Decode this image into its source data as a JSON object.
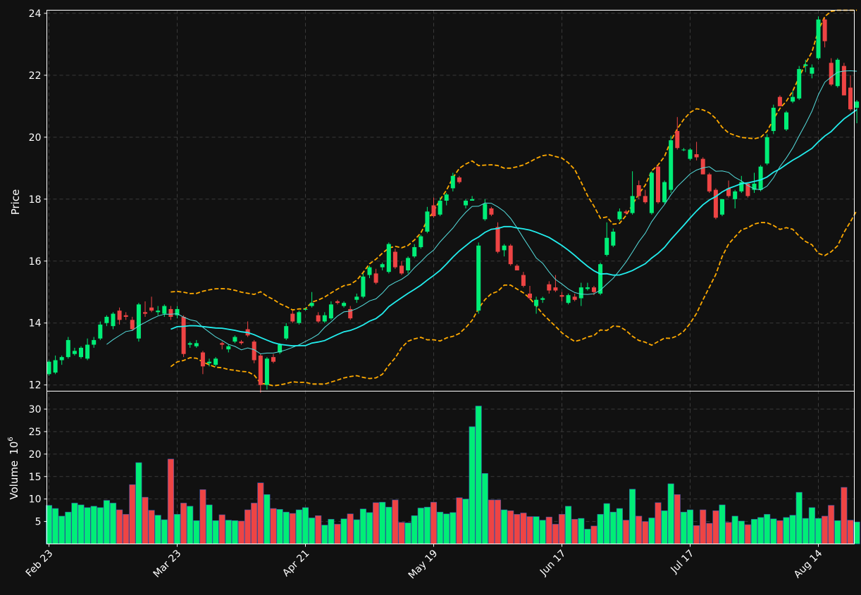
{
  "colors": {
    "background": "#111111",
    "up": "#00ee77",
    "down": "#ee4444",
    "sma_fast": "#55dddd",
    "sma_slow": "#22eeee",
    "bollinger": "#ffaa00",
    "grid": "#3a3a3a",
    "text": "#ffffff"
  },
  "chart_data": {
    "type": "candlestick",
    "ylabel": "Price",
    "volume_label": "Volume",
    "volume_exponent_label": "10",
    "volume_exponent": "6",
    "price_ylim": [
      11.8,
      24.1
    ],
    "price_ticks": [
      "12",
      "14",
      "16",
      "18",
      "20",
      "22",
      "24"
    ],
    "volume_ylim": [
      0,
      34
    ],
    "volume_ticks": [
      "5",
      "10",
      "15",
      "20",
      "25",
      "30"
    ],
    "x_tick_labels": [
      "Feb 23",
      "Mar 23",
      "Apr 21",
      "May 19",
      "Jun 17",
      "Jul 17",
      "Aug 14"
    ],
    "x_tick_index": [
      0,
      20,
      40,
      60,
      80,
      100,
      120
    ],
    "grid": true,
    "ohlcv": [
      [
        12.35,
        12.8,
        12.3,
        12.75,
        8.6
      ],
      [
        12.4,
        12.95,
        12.35,
        12.8,
        7.9
      ],
      [
        12.8,
        12.95,
        12.65,
        12.9,
        6.2
      ],
      [
        12.9,
        13.55,
        12.85,
        13.45,
        7.1
      ],
      [
        13.0,
        13.2,
        12.95,
        13.1,
        9.1
      ],
      [
        12.9,
        13.25,
        12.85,
        13.2,
        8.7
      ],
      [
        12.85,
        13.5,
        12.8,
        13.3,
        8.1
      ],
      [
        13.3,
        13.55,
        13.2,
        13.45,
        8.4
      ],
      [
        13.5,
        14.05,
        13.45,
        13.95,
        8.1
      ],
      [
        14.0,
        14.25,
        13.9,
        14.2,
        9.7
      ],
      [
        13.9,
        14.35,
        13.8,
        14.3,
        9.1
      ],
      [
        14.4,
        14.5,
        13.95,
        14.1,
        7.6
      ],
      [
        14.25,
        14.35,
        14.1,
        14.2,
        6.6
      ],
      [
        14.1,
        14.2,
        13.75,
        13.8,
        13.2
      ],
      [
        13.5,
        14.65,
        13.4,
        14.6,
        18.1
      ],
      [
        14.35,
        14.7,
        14.2,
        14.3,
        10.4
      ],
      [
        14.5,
        14.85,
        14.35,
        14.4,
        7.5
      ],
      [
        14.35,
        14.55,
        14.25,
        14.4,
        6.4
      ],
      [
        14.3,
        14.6,
        14.2,
        14.55,
        5.4
      ],
      [
        14.45,
        14.55,
        14.1,
        14.2,
        18.9
      ],
      [
        14.25,
        14.55,
        14.15,
        14.45,
        6.6
      ],
      [
        14.2,
        14.25,
        12.9,
        13.0,
        9.1
      ],
      [
        13.3,
        13.4,
        13.2,
        13.35,
        8.4
      ],
      [
        13.25,
        13.45,
        13.2,
        13.35,
        5.2
      ],
      [
        13.05,
        13.1,
        12.35,
        12.6,
        12.1
      ],
      [
        12.7,
        12.85,
        12.6,
        12.75,
        8.7
      ],
      [
        12.65,
        12.9,
        12.6,
        12.85,
        5.2
      ],
      [
        13.35,
        13.4,
        13.15,
        13.3,
        6.5
      ],
      [
        13.15,
        13.3,
        13.05,
        13.25,
        5.3
      ],
      [
        13.4,
        13.6,
        13.35,
        13.55,
        5.2
      ],
      [
        13.4,
        13.45,
        13.3,
        13.35,
        5.1
      ],
      [
        13.8,
        14.05,
        13.55,
        13.6,
        7.6
      ],
      [
        13.4,
        13.45,
        12.7,
        12.8,
        9.1
      ],
      [
        12.95,
        13.0,
        11.75,
        12.0,
        13.6
      ],
      [
        12.0,
        12.9,
        11.85,
        12.85,
        11.0
      ],
      [
        12.9,
        13.0,
        12.7,
        12.75,
        7.9
      ],
      [
        13.05,
        13.35,
        13.0,
        13.3,
        7.7
      ],
      [
        13.5,
        14.0,
        13.45,
        13.9,
        7.1
      ],
      [
        14.3,
        14.4,
        14.0,
        14.05,
        6.8
      ],
      [
        14.0,
        14.4,
        13.95,
        14.35,
        7.6
      ],
      [
        14.45,
        14.5,
        14.4,
        14.45,
        8.1
      ],
      [
        14.55,
        15.0,
        14.5,
        14.65,
        5.8
      ],
      [
        14.25,
        14.35,
        14.0,
        14.05,
        6.3
      ],
      [
        14.05,
        14.35,
        14.0,
        14.25,
        4.2
      ],
      [
        14.15,
        14.7,
        14.1,
        14.6,
        5.5
      ],
      [
        14.7,
        14.75,
        14.6,
        14.65,
        4.4
      ],
      [
        14.55,
        14.7,
        14.5,
        14.65,
        5.6
      ],
      [
        14.45,
        14.55,
        14.1,
        14.15,
        6.7
      ],
      [
        14.75,
        14.95,
        14.65,
        14.85,
        5.4
      ],
      [
        14.85,
        15.6,
        14.8,
        15.5,
        7.8
      ],
      [
        15.55,
        15.85,
        15.45,
        15.8,
        7.0
      ],
      [
        15.6,
        15.75,
        15.25,
        15.3,
        9.2
      ],
      [
        15.8,
        15.95,
        15.7,
        15.9,
        9.3
      ],
      [
        15.65,
        16.6,
        15.6,
        16.55,
        8.2
      ],
      [
        16.3,
        16.4,
        15.75,
        15.8,
        9.8
      ],
      [
        15.85,
        16.0,
        15.55,
        15.6,
        4.8
      ],
      [
        15.7,
        16.15,
        15.6,
        16.1,
        4.7
      ],
      [
        16.15,
        16.55,
        16.1,
        16.45,
        6.3
      ],
      [
        16.45,
        16.85,
        16.4,
        16.8,
        8.0
      ],
      [
        16.95,
        17.75,
        16.9,
        17.6,
        8.2
      ],
      [
        17.8,
        18.05,
        17.4,
        17.45,
        9.3
      ],
      [
        17.5,
        18.05,
        17.45,
        17.95,
        7.1
      ],
      [
        17.95,
        18.2,
        17.8,
        18.15,
        6.7
      ],
      [
        18.35,
        18.85,
        18.25,
        18.75,
        7.0
      ],
      [
        18.7,
        18.75,
        18.5,
        18.55,
        10.3
      ],
      [
        17.8,
        18.0,
        17.7,
        17.95,
        10.0
      ],
      [
        17.95,
        18.1,
        17.95,
        18.0,
        26.1
      ],
      [
        14.4,
        16.6,
        14.3,
        16.5,
        30.7
      ],
      [
        17.35,
        18.0,
        17.3,
        17.85,
        15.7
      ],
      [
        17.7,
        17.75,
        17.45,
        17.5,
        9.8
      ],
      [
        17.1,
        17.25,
        16.25,
        16.3,
        9.8
      ],
      [
        16.35,
        16.55,
        16.15,
        16.5,
        7.6
      ],
      [
        16.5,
        16.55,
        15.85,
        15.9,
        7.4
      ],
      [
        15.85,
        15.9,
        15.7,
        15.7,
        6.6
      ],
      [
        15.55,
        15.65,
        15.15,
        15.2,
        6.9
      ],
      [
        14.95,
        15.2,
        14.75,
        14.8,
        6.1
      ],
      [
        14.55,
        14.85,
        14.3,
        14.75,
        6.1
      ],
      [
        14.75,
        14.85,
        14.65,
        14.8,
        5.3
      ],
      [
        15.25,
        15.35,
        14.95,
        15.05,
        6.0
      ],
      [
        15.15,
        15.55,
        15.0,
        15.05,
        4.4
      ],
      [
        14.9,
        15.0,
        14.7,
        14.85,
        6.6
      ],
      [
        14.65,
        14.95,
        14.6,
        14.9,
        8.4
      ],
      [
        14.85,
        14.95,
        14.7,
        14.75,
        5.5
      ],
      [
        14.8,
        15.3,
        14.55,
        15.15,
        5.7
      ],
      [
        15.1,
        15.3,
        15.05,
        15.15,
        3.3
      ],
      [
        15.15,
        15.2,
        14.9,
        15.0,
        4.0
      ],
      [
        14.95,
        15.95,
        14.9,
        15.9,
        6.6
      ],
      [
        16.2,
        17.25,
        16.15,
        16.75,
        9.0
      ],
      [
        16.5,
        17.05,
        16.45,
        16.95,
        7.1
      ],
      [
        17.35,
        17.7,
        17.3,
        17.6,
        7.9
      ],
      [
        17.6,
        17.65,
        17.5,
        17.55,
        5.3
      ],
      [
        17.55,
        18.9,
        17.5,
        18.1,
        12.2
      ],
      [
        18.45,
        18.6,
        18.0,
        18.1,
        6.2
      ],
      [
        18.1,
        18.3,
        17.85,
        17.9,
        5.0
      ],
      [
        17.55,
        18.9,
        17.5,
        18.85,
        5.8
      ],
      [
        19.05,
        19.1,
        17.85,
        17.9,
        9.2
      ],
      [
        17.9,
        18.6,
        17.85,
        18.55,
        7.4
      ],
      [
        18.3,
        20.05,
        18.2,
        19.9,
        13.4
      ],
      [
        20.2,
        20.65,
        19.6,
        19.65,
        11.0
      ],
      [
        19.6,
        19.65,
        19.55,
        19.6,
        7.1
      ],
      [
        19.3,
        19.65,
        19.25,
        19.6,
        7.6
      ],
      [
        19.45,
        19.85,
        19.25,
        19.35,
        4.1
      ],
      [
        19.3,
        19.35,
        18.8,
        18.8,
        7.6
      ],
      [
        18.8,
        18.85,
        18.2,
        18.25,
        4.6
      ],
      [
        18.3,
        18.35,
        17.35,
        17.4,
        7.4
      ],
      [
        17.5,
        18.0,
        17.45,
        18.0,
        8.7
      ],
      [
        18.35,
        18.6,
        18.05,
        18.1,
        4.8
      ],
      [
        18.0,
        18.3,
        17.7,
        18.25,
        6.2
      ],
      [
        18.25,
        18.75,
        18.2,
        18.55,
        5.1
      ],
      [
        18.5,
        18.55,
        18.05,
        18.1,
        4.3
      ],
      [
        18.3,
        18.85,
        18.2,
        18.5,
        5.5
      ],
      [
        18.3,
        19.1,
        18.25,
        19.05,
        5.9
      ],
      [
        19.15,
        20.1,
        19.1,
        20.0,
        6.6
      ],
      [
        20.2,
        21.05,
        20.1,
        20.95,
        5.6
      ],
      [
        21.3,
        21.35,
        21.0,
        21.0,
        5.2
      ],
      [
        20.25,
        20.85,
        20.2,
        20.8,
        5.9
      ],
      [
        21.15,
        21.5,
        21.1,
        21.3,
        6.4
      ],
      [
        21.25,
        22.3,
        21.2,
        22.2,
        11.5
      ],
      [
        22.3,
        22.5,
        22.1,
        22.35,
        5.7
      ],
      [
        22.05,
        22.35,
        21.9,
        22.25,
        8.1
      ],
      [
        22.55,
        23.9,
        22.5,
        23.8,
        5.7
      ],
      [
        23.8,
        23.85,
        22.9,
        23.1,
        6.2
      ],
      [
        22.4,
        22.55,
        21.65,
        21.7,
        8.6
      ],
      [
        21.65,
        22.55,
        21.6,
        22.5,
        5.2
      ],
      [
        22.3,
        22.4,
        21.35,
        21.35,
        12.6
      ],
      [
        21.6,
        22.0,
        20.85,
        20.9,
        5.3
      ],
      [
        20.95,
        21.2,
        20.45,
        21.15,
        4.9
      ]
    ]
  }
}
